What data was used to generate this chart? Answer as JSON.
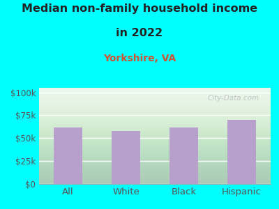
{
  "categories": [
    "All",
    "White",
    "Black",
    "Hispanic"
  ],
  "values": [
    62000,
    58000,
    62000,
    70000
  ],
  "bar_color": "#b8a0cc",
  "title_line1": "Median non-family household income",
  "title_line2": "in 2022",
  "subtitle": "Yorkshire, VA",
  "subtitle_color": "#cc5533",
  "title_color": "#222222",
  "title_fontsize": 11.5,
  "subtitle_fontsize": 10,
  "bg_color": "#00ffff",
  "yticks": [
    0,
    25000,
    50000,
    75000,
    100000
  ],
  "ytick_labels": [
    "$0",
    "$25k",
    "$50k",
    "$75k",
    "$100k"
  ],
  "ylim": [
    0,
    105000
  ],
  "tick_color": "#555555",
  "watermark": "City-Data.com",
  "watermark_color": "#bbbbbb",
  "grid_color": "#dddddd"
}
